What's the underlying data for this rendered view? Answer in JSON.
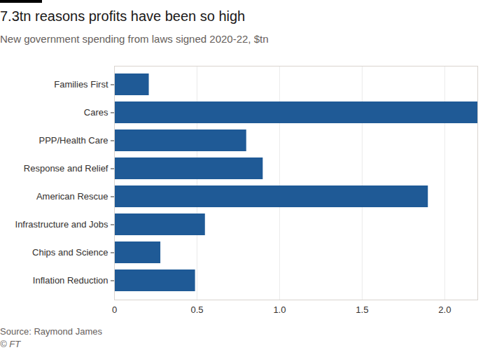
{
  "chart_data": {
    "type": "bar",
    "title": "7.3tn reasons profits have been so high",
    "subtitle": "New government spending from laws signed 2020-22, $tn",
    "source": "Source: Raymond James",
    "credit": "© FT",
    "orientation": "horizontal",
    "categories": [
      "Families First",
      "Cares",
      "PPP/Health Care",
      "Response and Relief",
      "American Rescue",
      "Infrastructure and Jobs",
      "Chips and Science",
      "Inflation Reduction"
    ],
    "values": [
      0.21,
      2.2,
      0.8,
      0.9,
      1.9,
      0.55,
      0.28,
      0.49
    ],
    "color": "#1f5a96",
    "xlim": [
      0,
      2.2
    ],
    "xticks": [
      0,
      0.5,
      {
        "value": 1,
        "label": "1.0"
      },
      1.5,
      {
        "value": 2,
        "label": "2.0"
      }
    ],
    "grid": true
  }
}
